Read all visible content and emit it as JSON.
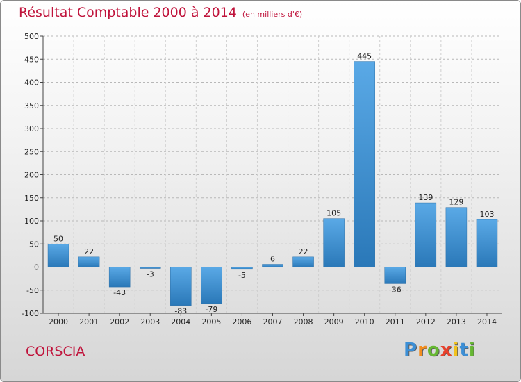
{
  "title": {
    "main": "Résultat Comptable 2000 à 2014",
    "sub": "(en milliers d'€)"
  },
  "commune": "CORSCIA",
  "logo": {
    "letters": [
      "P",
      "r",
      "o",
      "x",
      "i",
      "t",
      "i"
    ],
    "colors": [
      "#3c8fd6",
      "#f28c1e",
      "#66b832",
      "#e8412c",
      "#f2c21e",
      "#3c8fd6",
      "#66b832"
    ]
  },
  "colors": {
    "title": "#c0143c",
    "bar_light": "#5aa9e6",
    "bar_dark": "#2a78b8"
  },
  "chart_data": {
    "type": "bar",
    "title": "Résultat Comptable 2000 à 2014",
    "subtitle": "(en milliers d'€)",
    "categories": [
      "2000",
      "2001",
      "2002",
      "2003",
      "2004",
      "2005",
      "2006",
      "2007",
      "2008",
      "2009",
      "2010",
      "2011",
      "2012",
      "2013",
      "2014"
    ],
    "values": [
      50,
      22,
      -43,
      -3,
      -83,
      -79,
      -5,
      6,
      22,
      105,
      445,
      -36,
      139,
      129,
      103
    ],
    "labels": [
      "50",
      "22",
      "-43",
      "-3",
      "-83",
      "-79",
      "-5",
      "6",
      "22",
      "105",
      "445",
      "-36",
      "139",
      "129",
      "103"
    ],
    "ylim": [
      -100,
      500
    ],
    "yticks": [
      -100,
      -50,
      0,
      50,
      100,
      150,
      200,
      250,
      300,
      350,
      400,
      450,
      500
    ],
    "ytick_labels": [
      "-100",
      "-50",
      "0",
      "50",
      "100",
      "150",
      "200",
      "250",
      "300",
      "350",
      "400",
      "450",
      "500"
    ],
    "grid": "horizontal dashed",
    "legend": "none"
  }
}
